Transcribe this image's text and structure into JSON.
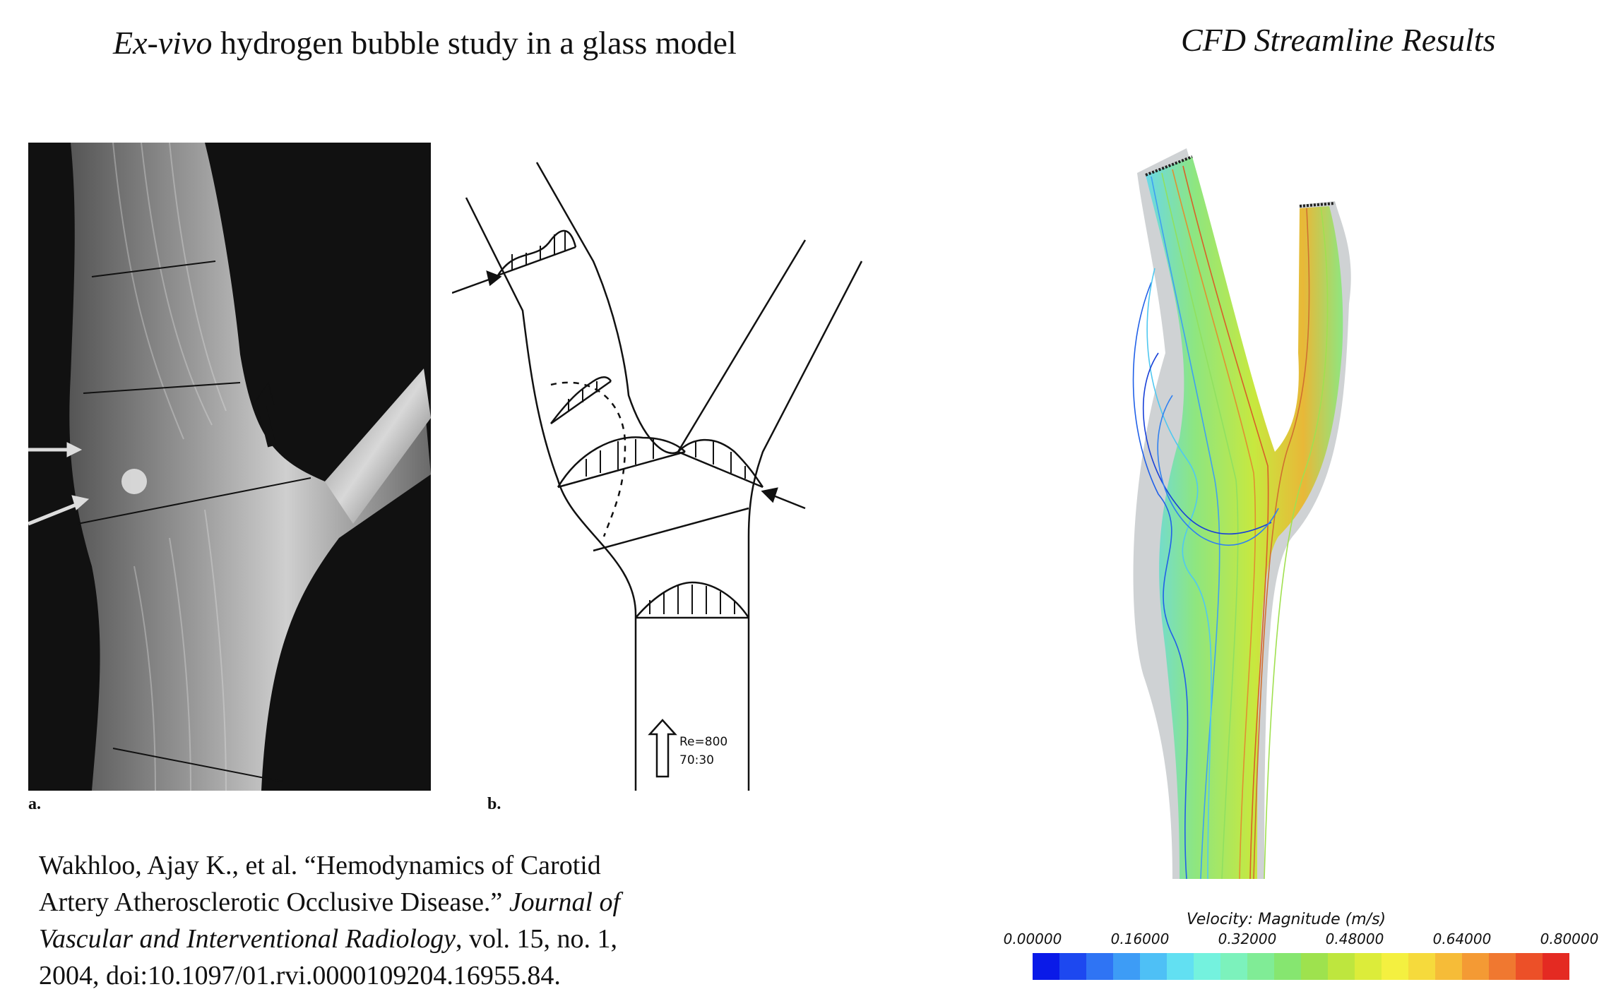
{
  "titles": {
    "left_italic": "Ex-vivo",
    "left_rest": " hydrogen bubble study in a glass model",
    "right": "CFD Streamline Results"
  },
  "panels": {
    "a_label": "a.",
    "b_label": "b.",
    "b_annotation_re": "Re=800",
    "b_annotation_ratio": "70:30"
  },
  "citation": {
    "line1": "Wakhloo, Ajay K., et al. “Hemodynamics of Carotid",
    "line2_plain": "Artery Atherosclerotic Occlusive Disease.” ",
    "line2_italic": "Journal of",
    "line3_italic": "Vascular and Interventional Radiology",
    "line3_plain": ", vol. 15, no. 1,",
    "line4": "2004, doi:10.1097/01.rvi.0000109204.16955.84."
  },
  "legend": {
    "title": "Velocity: Magnitude (m/s)",
    "ticks": [
      "0.00000",
      "0.16000",
      "0.32000",
      "0.48000",
      "0.64000",
      "0.80000"
    ],
    "colors": [
      "#0a1ae8",
      "#1d48f0",
      "#2f74f4",
      "#3d9cf6",
      "#4ec0f6",
      "#62e0f2",
      "#74f2de",
      "#7cf2bc",
      "#80ec96",
      "#86e670",
      "#9ee24e",
      "#bee63e",
      "#dcec3a",
      "#f4f040",
      "#f6da3c",
      "#f6bc38",
      "#f49a34",
      "#f07830",
      "#ec5028",
      "#e42a22"
    ]
  }
}
